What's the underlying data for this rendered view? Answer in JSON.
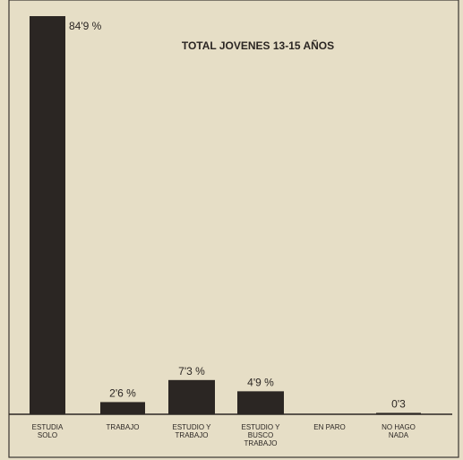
{
  "chart_data": {
    "type": "bar",
    "title": "TOTAL JOVENES 13-15 AÑOS",
    "categories": [
      [
        "ESTUDIA",
        "SOLO"
      ],
      [
        "TRABAJO"
      ],
      [
        "ESTUDIO Y",
        "TRABAJO"
      ],
      [
        "ESTUDIO Y",
        "BUSCO",
        "TRABAJO"
      ],
      [
        "EN PARO"
      ],
      [
        "NO HAGO",
        "NADA"
      ]
    ],
    "values": [
      84.9,
      2.6,
      7.3,
      4.9,
      0,
      0.3
    ],
    "value_labels": [
      "84'9 %",
      "2'6 %",
      "7'3 %",
      "4'9 %",
      null,
      "0'3"
    ],
    "color": "#2b2623"
  }
}
